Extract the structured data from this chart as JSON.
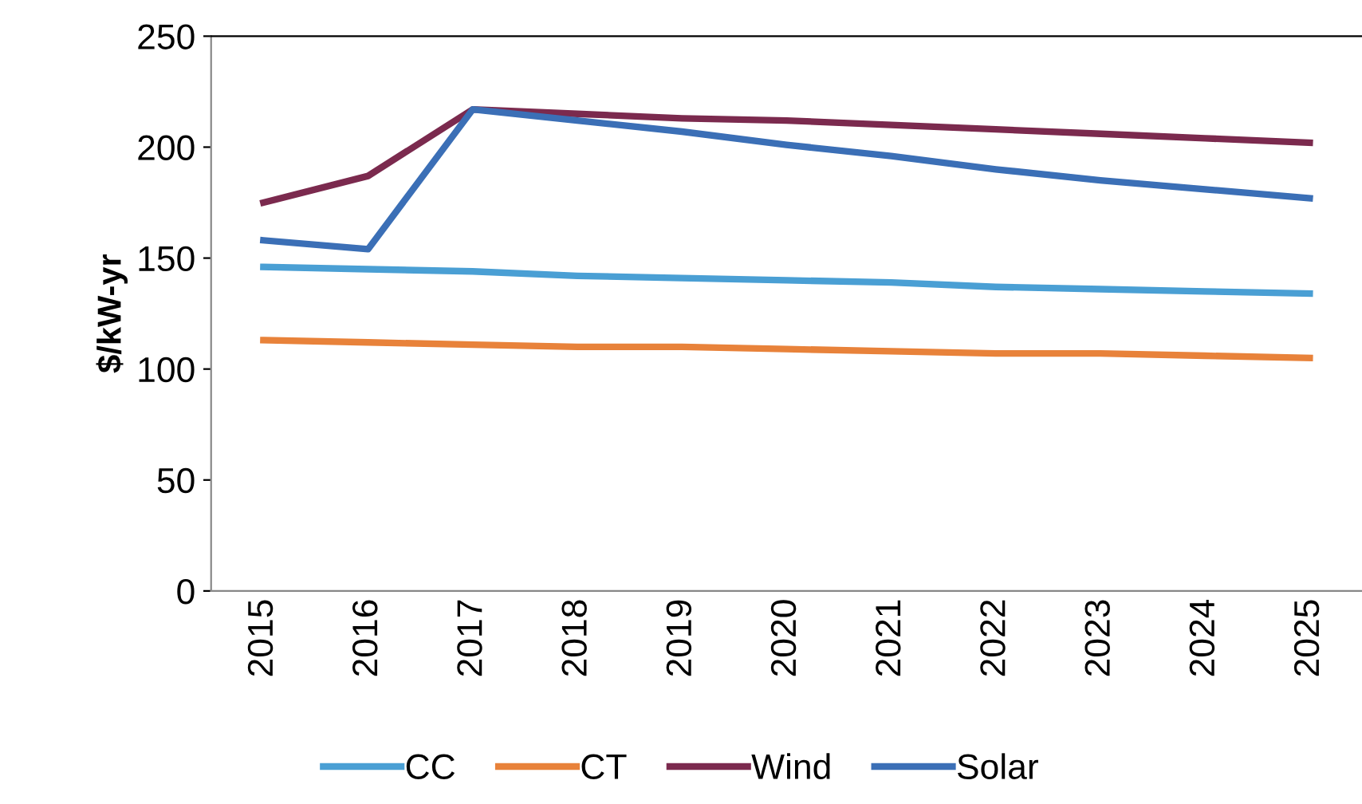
{
  "chart_data": {
    "type": "line",
    "ylabel": "$/kW-yr",
    "categories": [
      "2015",
      "2016",
      "2017",
      "2018",
      "2019",
      "2020",
      "2021",
      "2022",
      "2023",
      "2024",
      "2025"
    ],
    "series": [
      {
        "name": "CC",
        "color": "#4a9fd4",
        "values": [
          146,
          145,
          144,
          142,
          141,
          140,
          139,
          137,
          136,
          135,
          134
        ]
      },
      {
        "name": "CT",
        "color": "#e8823a",
        "values": [
          113,
          112,
          111,
          110,
          110,
          109,
          108,
          107,
          107,
          106,
          105
        ]
      },
      {
        "name": "Wind",
        "color": "#7b2a4e",
        "values": [
          175,
          187,
          217,
          215,
          213,
          212,
          210,
          208,
          206,
          204,
          202
        ]
      },
      {
        "name": "Solar",
        "color": "#3b6fb6",
        "values": [
          158,
          154,
          217,
          212,
          207,
          201,
          196,
          190,
          185,
          181,
          177
        ]
      }
    ],
    "ylim": [
      0,
      250
    ],
    "yticks": [
      0,
      50,
      100,
      150,
      200,
      250
    ],
    "grid": false,
    "legend": "bottom",
    "marker": "none",
    "line_style": "solid"
  }
}
